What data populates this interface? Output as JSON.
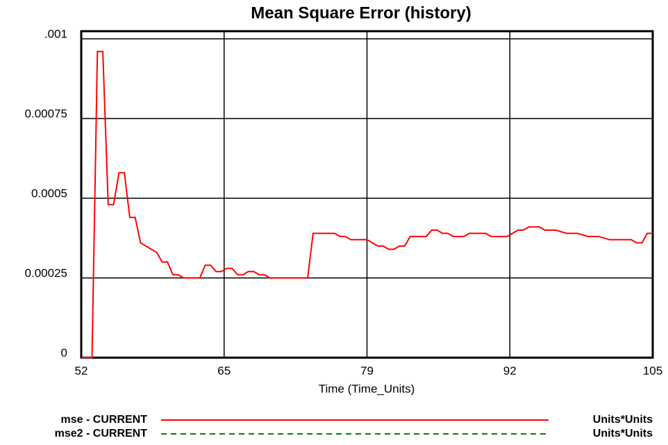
{
  "chart_data": {
    "type": "line",
    "title": "Mean Square Error (history)",
    "xlabel": "Time (Time_Units)",
    "x": [
      52,
      53,
      53.5,
      54,
      54.5,
      55,
      55.5,
      56,
      56.5,
      57,
      57.5,
      58,
      58.5,
      59,
      59.5,
      60,
      60.5,
      61,
      61.5,
      62,
      62.5,
      63,
      63.5,
      64,
      64.5,
      65,
      65.5,
      66,
      66.5,
      67,
      67.5,
      68,
      68.5,
      69,
      69.5,
      73,
      73.5,
      75.5,
      76,
      76.5,
      77,
      78.5,
      79,
      79.5,
      80,
      80.5,
      81,
      81.5,
      82,
      82.5,
      84,
      84.5,
      85,
      85.5,
      86,
      86.5,
      87.5,
      88,
      89.5,
      90,
      91.5,
      92,
      92.5,
      93,
      93.5,
      94.5,
      95,
      96,
      97,
      98,
      99,
      100,
      101,
      103,
      103.5,
      104,
      104.5,
      105
    ],
    "series": [
      {
        "name": "mse - CURRENT",
        "units": "Units*Units",
        "color": "#ff0000",
        "dashed": false,
        "values": [
          0,
          0,
          0.00096,
          0.00096,
          0.00048,
          0.00048,
          0.00058,
          0.00058,
          0.00044,
          0.00044,
          0.00036,
          0.00035,
          0.00034,
          0.00033,
          0.0003,
          0.0003,
          0.00026,
          0.00026,
          0.00025,
          0.00025,
          0.00025,
          0.00025,
          0.00029,
          0.00029,
          0.00027,
          0.00027,
          0.00028,
          0.00028,
          0.00026,
          0.00026,
          0.00027,
          0.00027,
          0.00026,
          0.00026,
          0.00025,
          0.00025,
          0.00039,
          0.00039,
          0.00038,
          0.00038,
          0.00037,
          0.00037,
          0.00036,
          0.00035,
          0.00035,
          0.00034,
          0.00034,
          0.00035,
          0.00035,
          0.00038,
          0.00038,
          0.0004,
          0.0004,
          0.00039,
          0.00039,
          0.00038,
          0.00038,
          0.00039,
          0.00039,
          0.00038,
          0.00038,
          0.00039,
          0.0004,
          0.0004,
          0.00041,
          0.00041,
          0.0004,
          0.0004,
          0.00039,
          0.00039,
          0.00038,
          0.00038,
          0.00037,
          0.00037,
          0.00036,
          0.00036,
          0.00039,
          0.00039
        ]
      },
      {
        "name": "mse2 - CURRENT",
        "units": "Units*Units",
        "color": "#008000",
        "dashed": true,
        "values": [
          null,
          null,
          null,
          null,
          null,
          null,
          null,
          null,
          null,
          null,
          null,
          null,
          null,
          null,
          null,
          null,
          null,
          null,
          null,
          null,
          null,
          null,
          null,
          null,
          null,
          null,
          null,
          null,
          null,
          null,
          null,
          null,
          null,
          null,
          null,
          null,
          null,
          null,
          null,
          null,
          null,
          null,
          null,
          null,
          null,
          null,
          null,
          null,
          null,
          null,
          null,
          null,
          null,
          null,
          null,
          null,
          null,
          null,
          null,
          null,
          null,
          null,
          null,
          null,
          null,
          null,
          null,
          null,
          null,
          null,
          null,
          null,
          null,
          null,
          null,
          null,
          null,
          null
        ]
      }
    ],
    "xlim": [
      52,
      105
    ],
    "xticks": [
      52,
      {
        "value": 65.25,
        "label": "65"
      },
      {
        "value": 78.5,
        "label": "79"
      },
      {
        "value": 91.75,
        "label": "92"
      },
      105
    ],
    "ylim": [
      0,
      0.001
    ],
    "yticks": [
      0,
      0.00025,
      0.0005,
      0.00075,
      {
        "value": 0.001,
        "label": ".001"
      }
    ],
    "grid": true
  }
}
